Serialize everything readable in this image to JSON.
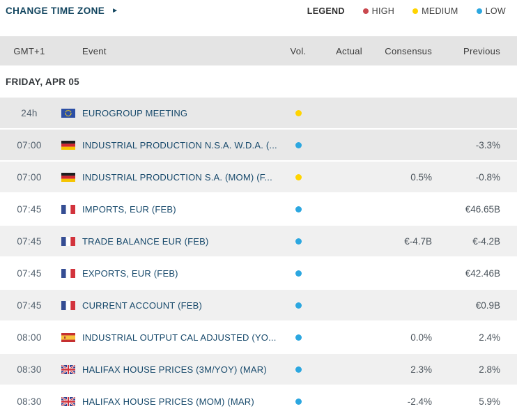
{
  "toolbar": {
    "change_time_zone_label": "CHANGE TIME ZONE",
    "arrow_icon": "►"
  },
  "legend": {
    "title": "LEGEND",
    "items": [
      {
        "key": "high",
        "label": "HIGH"
      },
      {
        "key": "medium",
        "label": "MEDIUM"
      },
      {
        "key": "low",
        "label": "LOW"
      }
    ]
  },
  "colors": {
    "accent_navy": "#12455f",
    "header_bg": "#e4e4e4",
    "row_past_bg": "#e8e8e8",
    "row_alt_bg": "#f0f0f0",
    "high": "#c9484f",
    "medium": "#ffd400",
    "low": "#2ca7e0"
  },
  "table": {
    "columns": {
      "time": "GMT+1",
      "event": "Event",
      "vol": "Vol.",
      "actual": "Actual",
      "consensus": "Consensus",
      "previous": "Previous"
    },
    "day_header": "FRIDAY, APR 05",
    "rows": [
      {
        "time": "24h",
        "country": "eu",
        "event": "EUROGROUP MEETING",
        "vol": "medium",
        "actual": "",
        "consensus": "",
        "previous": ""
      },
      {
        "time": "07:00",
        "country": "de",
        "event": "INDUSTRIAL PRODUCTION N.S.A. W.D.A. (...",
        "vol": "low",
        "actual": "",
        "consensus": "",
        "previous": "-3.3%"
      },
      {
        "time": "07:00",
        "country": "de",
        "event": "INDUSTRIAL PRODUCTION S.A. (MOM) (F...",
        "vol": "medium",
        "actual": "",
        "consensus": "0.5%",
        "previous": "-0.8%"
      },
      {
        "time": "07:45",
        "country": "fr",
        "event": "IMPORTS, EUR (FEB)",
        "vol": "low",
        "actual": "",
        "consensus": "",
        "previous": "€46.65B"
      },
      {
        "time": "07:45",
        "country": "fr",
        "event": "TRADE BALANCE EUR (FEB)",
        "vol": "low",
        "actual": "",
        "consensus": "€-4.7B",
        "previous": "€-4.2B"
      },
      {
        "time": "07:45",
        "country": "fr",
        "event": "EXPORTS, EUR (FEB)",
        "vol": "low",
        "actual": "",
        "consensus": "",
        "previous": "€42.46B"
      },
      {
        "time": "07:45",
        "country": "fr",
        "event": "CURRENT ACCOUNT (FEB)",
        "vol": "low",
        "actual": "",
        "consensus": "",
        "previous": "€0.9B"
      },
      {
        "time": "08:00",
        "country": "es",
        "event": "INDUSTRIAL OUTPUT CAL ADJUSTED (YO...",
        "vol": "low",
        "actual": "",
        "consensus": "0.0%",
        "previous": "2.4%"
      },
      {
        "time": "08:30",
        "country": "gb",
        "event": "HALIFAX HOUSE PRICES (3M/YOY) (MAR)",
        "vol": "low",
        "actual": "",
        "consensus": "2.3%",
        "previous": "2.8%"
      },
      {
        "time": "08:30",
        "country": "gb",
        "event": "HALIFAX HOUSE PRICES (MOM) (MAR)",
        "vol": "low",
        "actual": "",
        "consensus": "-2.4%",
        "previous": "5.9%"
      }
    ]
  }
}
